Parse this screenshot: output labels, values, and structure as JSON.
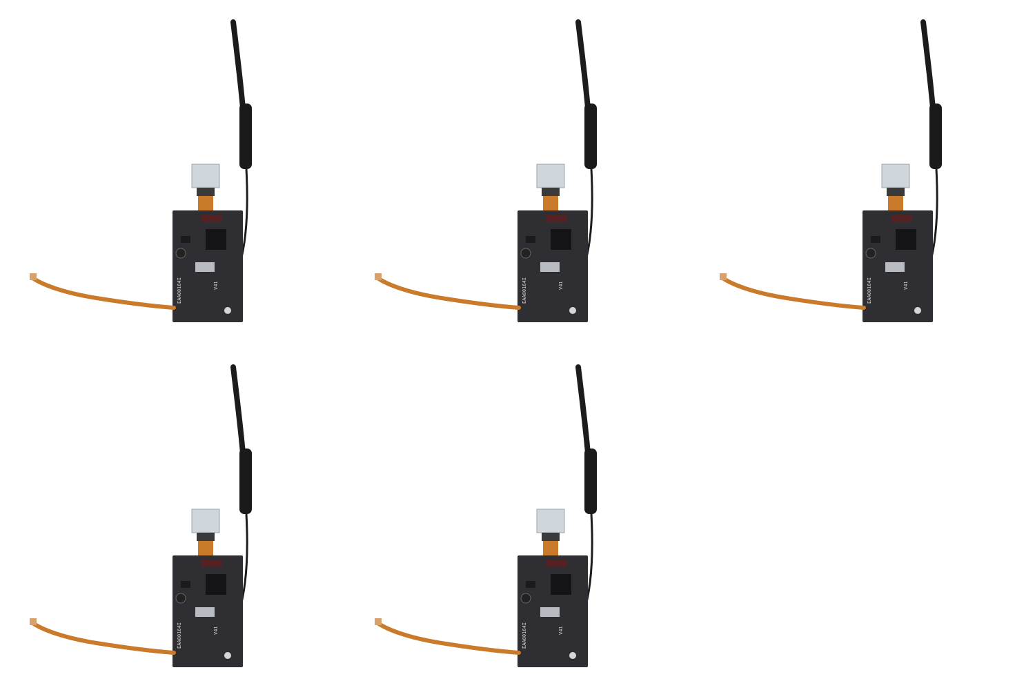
{
  "image": {
    "background": "#ffffff",
    "layout": "2 rows x 3 columns, 5 product photos",
    "product": {
      "board_marking": "EAA00164I",
      "board_version": "V41",
      "board_color": "#2f2f33",
      "flex_cable_color": "#c97a2b",
      "antenna_color": "#1c1c1e",
      "camera_module_color": "#cfd6dc"
    },
    "items": [
      {
        "id": "module-1",
        "row": 1,
        "col": 1
      },
      {
        "id": "module-2",
        "row": 1,
        "col": 2
      },
      {
        "id": "module-3",
        "row": 1,
        "col": 3
      },
      {
        "id": "module-4",
        "row": 2,
        "col": 1
      },
      {
        "id": "module-5",
        "row": 2,
        "col": 2
      }
    ]
  }
}
